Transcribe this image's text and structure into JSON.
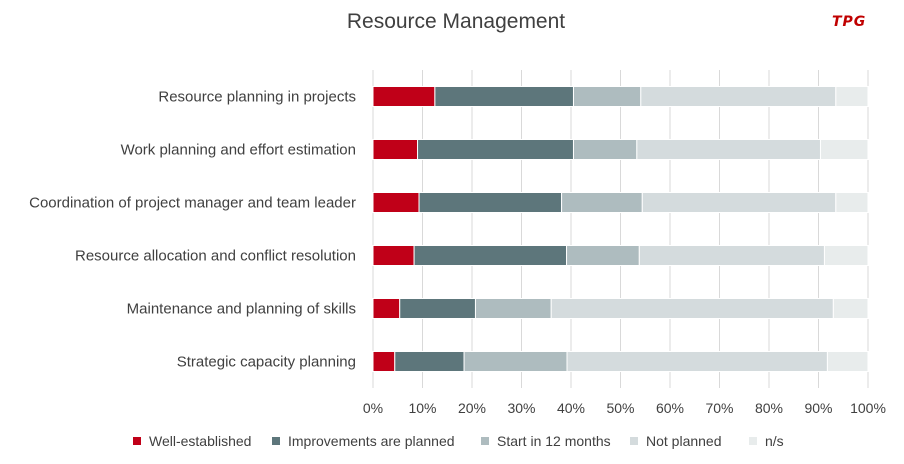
{
  "logo_text": "TPG",
  "chart_data": {
    "type": "bar",
    "orientation": "horizontal",
    "stacked": true,
    "title": "Resource Management",
    "categories": [
      "Resource planning in projects",
      "Work planning and effort estimation",
      "Coordination of project manager and team leader",
      "Resource allocation and conflict resolution",
      "Maintenance and planning of skills",
      "Strategic capacity planning"
    ],
    "series": [
      {
        "name": "Well-established",
        "color": "#c00018",
        "values": [
          12.5,
          9.0,
          9.3,
          8.3,
          5.4,
          4.4
        ]
      },
      {
        "name": "Improvements are planned",
        "color": "#5d767b",
        "values": [
          28.0,
          31.5,
          28.8,
          30.8,
          15.3,
          14.0
        ]
      },
      {
        "name": "Start in 12 months",
        "color": "#aebcbf",
        "values": [
          13.6,
          12.8,
          16.3,
          14.7,
          15.3,
          20.8
        ]
      },
      {
        "name": "Not planned",
        "color": "#d4dbdd",
        "values": [
          39.4,
          37.1,
          39.1,
          37.4,
          57.0,
          52.6
        ]
      },
      {
        "name": "n/s",
        "color": "#e8ecec",
        "values": [
          6.5,
          9.6,
          6.5,
          8.8,
          7.0,
          8.2
        ]
      }
    ],
    "xlim": [
      0,
      100
    ],
    "xticks": [
      "0%",
      "10%",
      "20%",
      "30%",
      "40%",
      "50%",
      "60%",
      "70%",
      "80%",
      "90%",
      "100%"
    ],
    "xlabel": "",
    "ylabel": "",
    "grid": true,
    "legend_position": "bottom"
  }
}
